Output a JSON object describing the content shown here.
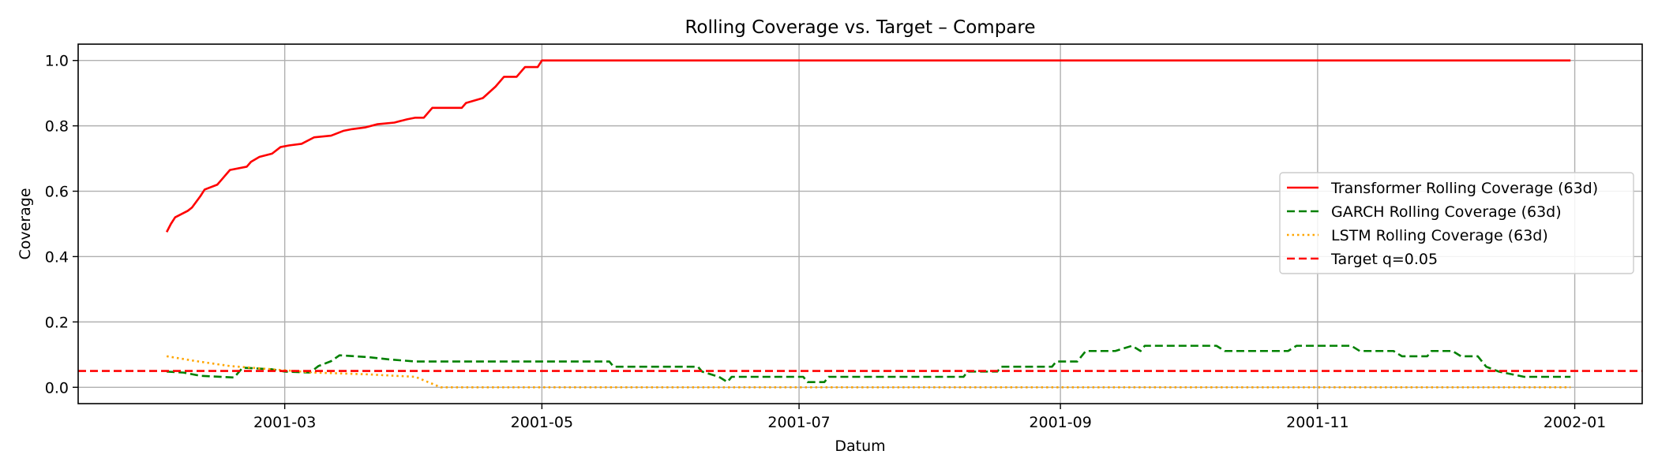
{
  "chart_data": {
    "type": "line",
    "title": "Rolling Coverage vs. Target – Compare",
    "xlabel": "Datum",
    "ylabel": "Coverage",
    "x_is_date": true,
    "xlim": [
      "2001-01-11",
      "2002-01-17"
    ],
    "ylim": [
      -0.05,
      1.05
    ],
    "grid": true,
    "legend_position": "center-right",
    "x_ticks": [
      {
        "value": "2001-03-01",
        "label": "2001-03"
      },
      {
        "value": "2001-05-01",
        "label": "2001-05"
      },
      {
        "value": "2001-07-01",
        "label": "2001-07"
      },
      {
        "value": "2001-09-01",
        "label": "2001-09"
      },
      {
        "value": "2001-11-01",
        "label": "2001-11"
      },
      {
        "value": "2002-01-01",
        "label": "2002-01"
      }
    ],
    "y_ticks": [
      {
        "value": 0.0,
        "label": "0.0"
      },
      {
        "value": 0.2,
        "label": "0.2"
      },
      {
        "value": 0.4,
        "label": "0.4"
      },
      {
        "value": 0.6,
        "label": "0.6"
      },
      {
        "value": 0.8,
        "label": "0.8"
      },
      {
        "value": 1.0,
        "label": "1.0"
      }
    ],
    "series": [
      {
        "name": "Transformer Rolling Coverage (63d)",
        "color": "#ff0000",
        "style": "solid",
        "points": [
          [
            "2001-02-01",
            0.475
          ],
          [
            "2001-02-02",
            0.5
          ],
          [
            "2001-02-03",
            0.52
          ],
          [
            "2001-02-06",
            0.54
          ],
          [
            "2001-02-07",
            0.55
          ],
          [
            "2001-02-09",
            0.585
          ],
          [
            "2001-02-10",
            0.605
          ],
          [
            "2001-02-13",
            0.62
          ],
          [
            "2001-02-14",
            0.635
          ],
          [
            "2001-02-16",
            0.665
          ],
          [
            "2001-02-20",
            0.675
          ],
          [
            "2001-02-21",
            0.69
          ],
          [
            "2001-02-23",
            0.705
          ],
          [
            "2001-02-26",
            0.715
          ],
          [
            "2001-02-28",
            0.735
          ],
          [
            "2001-03-02",
            0.74
          ],
          [
            "2001-03-05",
            0.745
          ],
          [
            "2001-03-08",
            0.765
          ],
          [
            "2001-03-12",
            0.77
          ],
          [
            "2001-03-15",
            0.785
          ],
          [
            "2001-03-17",
            0.79
          ],
          [
            "2001-03-20",
            0.795
          ],
          [
            "2001-03-23",
            0.805
          ],
          [
            "2001-03-27",
            0.81
          ],
          [
            "2001-03-30",
            0.82
          ],
          [
            "2001-04-01",
            0.825
          ],
          [
            "2001-04-03",
            0.825
          ],
          [
            "2001-04-05",
            0.855
          ],
          [
            "2001-04-12",
            0.855
          ],
          [
            "2001-04-13",
            0.87
          ],
          [
            "2001-04-17",
            0.885
          ],
          [
            "2001-04-20",
            0.92
          ],
          [
            "2001-04-22",
            0.95
          ],
          [
            "2001-04-25",
            0.95
          ],
          [
            "2001-04-27",
            0.98
          ],
          [
            "2001-04-29",
            0.98
          ],
          [
            "2001-04-30",
            0.98
          ],
          [
            "2001-05-01",
            1.0
          ],
          [
            "2001-12-31",
            1.0
          ]
        ]
      },
      {
        "name": "GARCH Rolling Coverage (63d)",
        "color": "#008000",
        "style": "dashed",
        "points": [
          [
            "2001-02-01",
            0.048
          ],
          [
            "2001-02-05",
            0.045
          ],
          [
            "2001-02-09",
            0.035
          ],
          [
            "2001-02-17",
            0.03
          ],
          [
            "2001-02-19",
            0.06
          ],
          [
            "2001-02-26",
            0.055
          ],
          [
            "2001-03-01",
            0.048
          ],
          [
            "2001-03-07",
            0.045
          ],
          [
            "2001-03-09",
            0.065
          ],
          [
            "2001-03-12",
            0.08
          ],
          [
            "2001-03-14",
            0.098
          ],
          [
            "2001-03-21",
            0.092
          ],
          [
            "2001-03-26",
            0.085
          ],
          [
            "2001-04-01",
            0.079
          ],
          [
            "2001-05-17",
            0.079
          ],
          [
            "2001-05-18",
            0.063
          ],
          [
            "2001-06-07",
            0.063
          ],
          [
            "2001-06-08",
            0.048
          ],
          [
            "2001-06-12",
            0.032
          ],
          [
            "2001-06-14",
            0.016
          ],
          [
            "2001-06-15",
            0.032
          ],
          [
            "2001-07-02",
            0.032
          ],
          [
            "2001-07-03",
            0.016
          ],
          [
            "2001-07-07",
            0.016
          ],
          [
            "2001-07-08",
            0.032
          ],
          [
            "2001-08-09",
            0.032
          ],
          [
            "2001-08-10",
            0.048
          ],
          [
            "2001-08-17",
            0.048
          ],
          [
            "2001-08-18",
            0.063
          ],
          [
            "2001-08-30",
            0.063
          ],
          [
            "2001-08-31",
            0.079
          ],
          [
            "2001-09-05",
            0.079
          ],
          [
            "2001-09-07",
            0.111
          ],
          [
            "2001-09-14",
            0.111
          ],
          [
            "2001-09-18",
            0.127
          ],
          [
            "2001-09-20",
            0.111
          ],
          [
            "2001-09-21",
            0.127
          ],
          [
            "2001-10-08",
            0.127
          ],
          [
            "2001-10-10",
            0.111
          ],
          [
            "2001-10-25",
            0.111
          ],
          [
            "2001-10-27",
            0.127
          ],
          [
            "2001-11-09",
            0.127
          ],
          [
            "2001-11-11",
            0.111
          ],
          [
            "2001-11-19",
            0.111
          ],
          [
            "2001-11-21",
            0.095
          ],
          [
            "2001-11-27",
            0.095
          ],
          [
            "2001-11-28",
            0.111
          ],
          [
            "2001-12-03",
            0.111
          ],
          [
            "2001-12-05",
            0.095
          ],
          [
            "2001-12-09",
            0.095
          ],
          [
            "2001-12-11",
            0.063
          ],
          [
            "2001-12-14",
            0.048
          ],
          [
            "2001-12-20",
            0.032
          ],
          [
            "2001-12-31",
            0.032
          ]
        ]
      },
      {
        "name": "LSTM Rolling Coverage (63d)",
        "color": "#ffa500",
        "style": "dotted",
        "points": [
          [
            "2001-02-01",
            0.095
          ],
          [
            "2001-02-08",
            0.08
          ],
          [
            "2001-02-16",
            0.065
          ],
          [
            "2001-02-26",
            0.055
          ],
          [
            "2001-03-08",
            0.045
          ],
          [
            "2001-03-20",
            0.04
          ],
          [
            "2001-04-01",
            0.032
          ],
          [
            "2001-04-04",
            0.016
          ],
          [
            "2001-04-07",
            0.0
          ],
          [
            "2001-12-31",
            0.0
          ]
        ]
      },
      {
        "name": "Target q=0.05",
        "color": "#ff0000",
        "style": "dashed",
        "horizontal_line": 0.05
      }
    ]
  }
}
